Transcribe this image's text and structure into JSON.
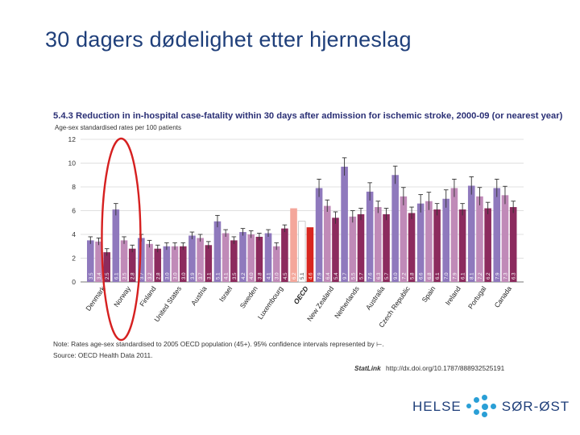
{
  "slide": {
    "title": "30 dagers dødelighet etter hjerneslag"
  },
  "figure": {
    "title": "5.4.3 Reduction in in-hospital case-fatality within 30 days after admission for ischemic stroke, 2000-09 (or nearest year)",
    "subtitle": "Age-sex standardised rates per 100 patients",
    "note": "Note: Rates age-sex standardised to 2005 OECD population (45+). 95% confidence intervals represented by ⊢.",
    "source": "Source: OECD Health Data 2011.",
    "statlink_tag": "StatLink",
    "statlink_url": "http://dx.doi.org/10.1787/888932525191"
  },
  "chart_data": {
    "type": "bar",
    "ylim": [
      0,
      12
    ],
    "yticks": [
      0,
      2,
      4,
      6,
      8,
      10,
      12
    ],
    "grid": true,
    "categories": [
      "Denmark",
      "Norway",
      "Finland",
      "United States",
      "Austria",
      "Israel",
      "Sweden",
      "Luxembourg",
      "OECD",
      "New Zealand",
      "Netherlands",
      "Australia",
      "Czech Republic",
      "Spain",
      "Ireland",
      "Portugal",
      "Canada"
    ],
    "series": [
      {
        "values": [
          3.5,
          6.1,
          3.7,
          3.0,
          3.9,
          5.1,
          4.2,
          4.1,
          6.2,
          7.9,
          9.7,
          7.6,
          9.0,
          6.6,
          7.0,
          8.1,
          7.9
        ]
      },
      {
        "values": [
          3.4,
          3.5,
          3.2,
          3.0,
          3.7,
          4.1,
          4.0,
          3.0,
          5.1,
          6.4,
          5.5,
          6.3,
          7.2,
          6.8,
          7.9,
          7.2,
          7.3
        ]
      },
      {
        "values": [
          2.5,
          2.8,
          2.8,
          3.0,
          3.1,
          3.5,
          3.8,
          4.5,
          4.6,
          5.4,
          5.7,
          5.7,
          5.8,
          6.1,
          6.1,
          6.2,
          6.3
        ]
      }
    ],
    "bar_value_labels": [
      [
        "3.5",
        "3.4",
        "2.5"
      ],
      [
        "6.1",
        "3.5",
        "2.8"
      ],
      [
        "3.7",
        "3.2",
        "2.8"
      ],
      [
        "3.0",
        "3.0",
        "3.0"
      ],
      [
        "3.9",
        "3.7",
        "3.1"
      ],
      [
        "5.1",
        "4.1",
        "3.5"
      ],
      [
        "4.2",
        "4.0",
        "3.8"
      ],
      [
        "4.1",
        "3.0",
        "4.5"
      ],
      [
        "6.2",
        "5.1",
        "4.6"
      ],
      [
        "7.9",
        "6.4",
        "5.4"
      ],
      [
        "9.7",
        "5.5",
        "5.7"
      ],
      [
        "7.6",
        "6.3",
        "5.7"
      ],
      [
        "9.0",
        "7.2",
        "5.8"
      ],
      [
        "6.6",
        "6.8",
        "6.1"
      ],
      [
        "7.0",
        "7.9",
        "6.1"
      ],
      [
        "8.1",
        "7.2",
        "6.2"
      ],
      [
        "7.9",
        "7.3",
        "6.3"
      ]
    ],
    "colors": {
      "series": [
        "#8f79bd",
        "#c08ab8",
        "#8c2b5e"
      ],
      "oecd": [
        "#f4a79b",
        "#ffffff",
        "#d8261f"
      ],
      "grid": "#d6d6d6",
      "error_bar": "#333333",
      "highlight_ellipse": "#d62020"
    },
    "highlight": "Norway"
  },
  "logo": {
    "left_text": "HELSE",
    "right_text": "SØR-ØST"
  }
}
